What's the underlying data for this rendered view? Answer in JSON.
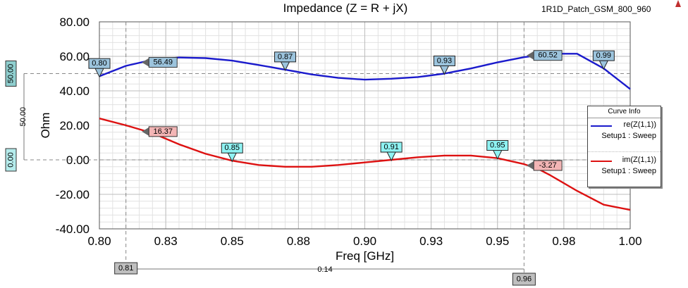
{
  "header": {
    "project_name": "1R1D_Patch_GSM_800_960"
  },
  "chart_data": {
    "type": "line",
    "title": "Impedance (Z = R + jX)",
    "xlabel": "Freq [GHz]",
    "ylabel": "Ohm",
    "xlim": [
      0.8,
      1.0
    ],
    "ylim": [
      -40,
      80
    ],
    "x_ticks": [
      "0.80",
      "0.83",
      "0.85",
      "0.88",
      "0.90",
      "0.93",
      "0.95",
      "0.98",
      "1.00"
    ],
    "x_tick_values": [
      0.8,
      0.825,
      0.85,
      0.875,
      0.9,
      0.925,
      0.95,
      0.975,
      1.0
    ],
    "y_ticks": [
      "80.00",
      "60.00",
      "40.00",
      "20.00",
      "0.00",
      "-20.00",
      "-40.00"
    ],
    "y_tick_values": [
      80,
      60,
      40,
      20,
      0,
      -20,
      -40
    ],
    "grid": true,
    "legend_title": "Curve Info",
    "legend_position": "right",
    "series": [
      {
        "name": "re(Z(1,1))",
        "setup": "Setup1 : Sweep",
        "color": "#1a1acc",
        "x": [
          0.8,
          0.81,
          0.82,
          0.83,
          0.84,
          0.85,
          0.86,
          0.87,
          0.88,
          0.89,
          0.9,
          0.91,
          0.92,
          0.93,
          0.94,
          0.95,
          0.96,
          0.965,
          0.97,
          0.98,
          0.99,
          1.0
        ],
        "y": [
          48.5,
          54.5,
          58.0,
          59.3,
          59.0,
          57.5,
          55.0,
          52.3,
          49.5,
          47.5,
          46.5,
          47.0,
          48.0,
          50.0,
          53.0,
          56.5,
          59.5,
          60.5,
          61.5,
          61.5,
          53.0,
          41.0
        ]
      },
      {
        "name": "im(Z(1,1))",
        "setup": "Setup1 : Sweep",
        "color": "#dd1111",
        "x": [
          0.8,
          0.81,
          0.82,
          0.83,
          0.84,
          0.85,
          0.86,
          0.87,
          0.88,
          0.89,
          0.9,
          0.91,
          0.92,
          0.93,
          0.94,
          0.95,
          0.96,
          0.965,
          0.97,
          0.98,
          0.99,
          1.0
        ],
        "y": [
          24.0,
          20.0,
          15.5,
          9.0,
          3.5,
          -0.5,
          -3.0,
          -4.0,
          -4.0,
          -3.0,
          -1.5,
          0.0,
          1.5,
          2.5,
          2.5,
          1.0,
          -2.5,
          -5.0,
          -9.0,
          -18.0,
          -26.0,
          -29.0
        ]
      }
    ],
    "markers": {
      "re_blue": [
        {
          "label": "0.80",
          "x": 0.8,
          "y": 48.5
        },
        {
          "label": "0.87",
          "x": 0.87,
          "y": 52.3
        },
        {
          "label": "0.93",
          "x": 0.93,
          "y": 50.0
        },
        {
          "label": "0.99",
          "x": 0.99,
          "y": 53.0
        }
      ],
      "im_cyan": [
        {
          "label": "0.85",
          "x": 0.85,
          "y": -0.5
        },
        {
          "label": "0.91",
          "x": 0.91,
          "y": 0.0
        },
        {
          "label": "0.95",
          "x": 0.95,
          "y": 1.0
        }
      ]
    },
    "value_tags": [
      {
        "label": "56.49",
        "x": 0.816,
        "y": 56.49,
        "series": "re"
      },
      {
        "label": "60.52",
        "x": 0.961,
        "y": 60.52,
        "series": "re"
      },
      {
        "label": "16.37",
        "x": 0.816,
        "y": 16.37,
        "series": "im"
      },
      {
        "label": "-3.27",
        "x": 0.961,
        "y": -3.27,
        "series": "im"
      }
    ],
    "cursors": {
      "x1": 0.81,
      "x2": 0.96,
      "y1": 50.0,
      "y2": 0.0,
      "x1_label": "0.81",
      "x2_label": "0.96",
      "dx_label": "0.14",
      "y1_label": "50.00",
      "y2_label": "0.00",
      "dy_label": "50.00"
    }
  }
}
